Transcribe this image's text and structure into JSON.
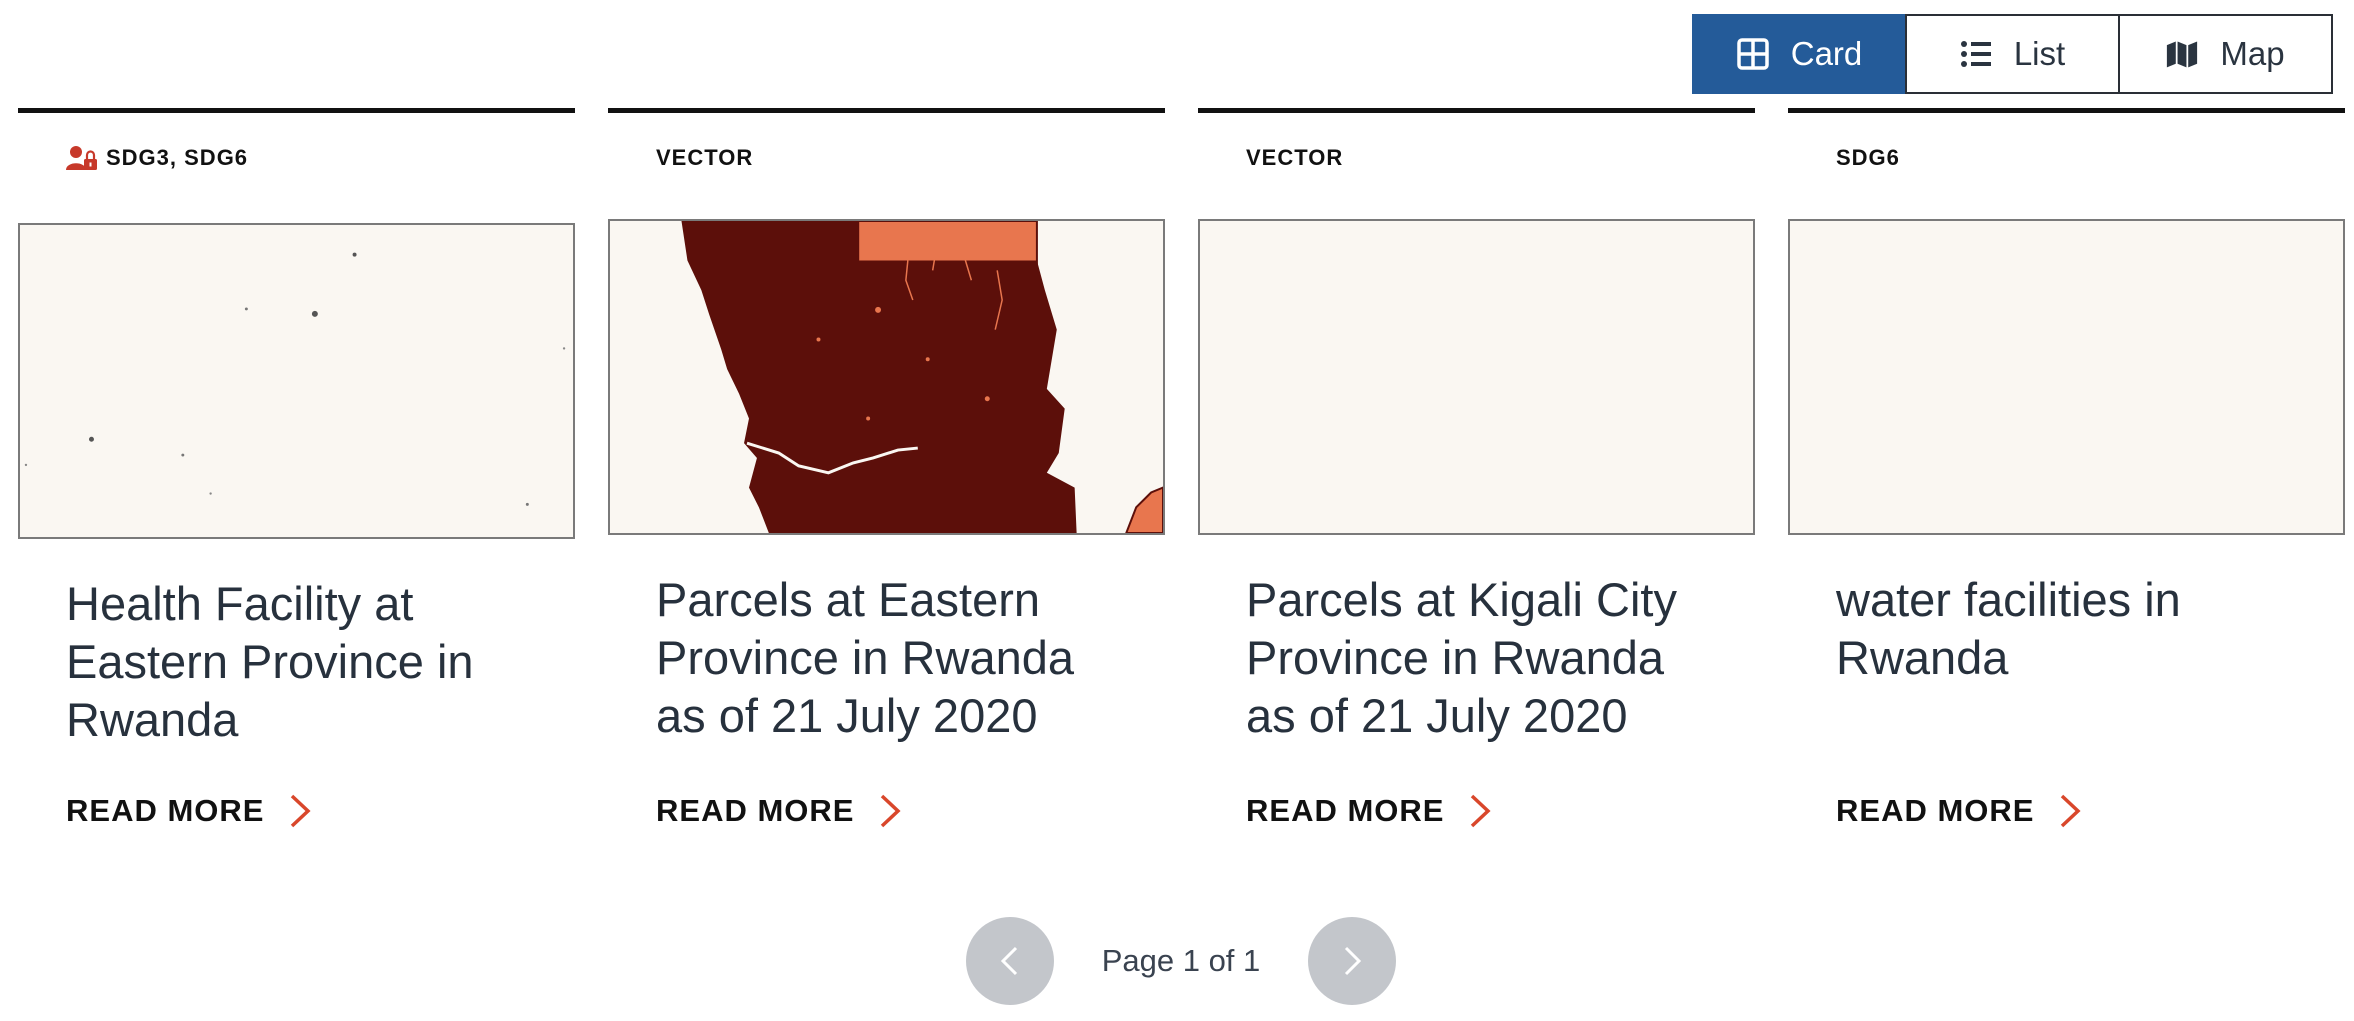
{
  "view_toggle": {
    "options": [
      {
        "label": "Card",
        "icon": "grid-icon",
        "active": true
      },
      {
        "label": "List",
        "icon": "list-icon",
        "active": false
      },
      {
        "label": "Map",
        "icon": "map-icon",
        "active": false
      }
    ],
    "active_color": "#245b99"
  },
  "cards": [
    {
      "tag": "SDG3, SDG6",
      "tag_icon": "restricted-user-icon",
      "title": "Health Facility at Eastern Province in Rwanda",
      "read_more": "READ MORE",
      "thumbnail": "scattered-points-map"
    },
    {
      "tag": "VECTOR",
      "title": "Parcels at Eastern Province in Rwanda as of 21 July 2020",
      "read_more": "READ MORE",
      "thumbnail": "parcels-map"
    },
    {
      "tag": "VECTOR",
      "title": "Parcels at Kigali City Province in Rwanda as of 21 July 2020",
      "read_more": "READ MORE",
      "thumbnail": "blank-map"
    },
    {
      "tag": "SDG6",
      "title": "water facilities in Rwanda",
      "read_more": "READ MORE",
      "thumbnail": "blank-map"
    }
  ],
  "pagination": {
    "text": "Page 1 of 1",
    "prev_icon": "chevron-left-icon",
    "next_icon": "chevron-right-icon"
  },
  "colors": {
    "accent": "#d9472b",
    "map_dark": "#5c0f0a",
    "map_light": "#e8764e"
  }
}
